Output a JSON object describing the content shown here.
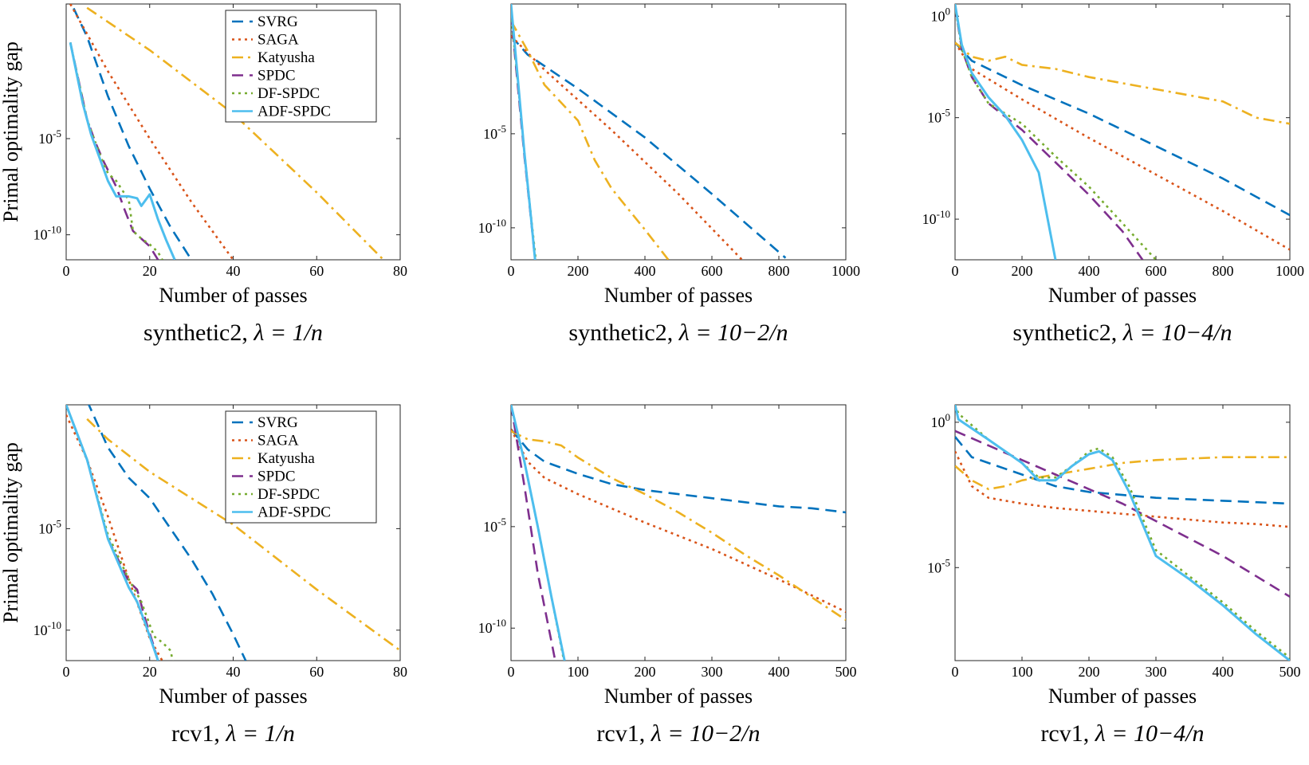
{
  "figure": {
    "ylabel": "Primal optimality gap",
    "legend": [
      "SVRG",
      "SAGA",
      "Katyusha",
      "SPDC",
      "DF-SPDC",
      "ADF-SPDC"
    ]
  },
  "series_styles": [
    {
      "name": "SVRG",
      "color": "#0072BD",
      "dash": "dashed"
    },
    {
      "name": "SAGA",
      "color": "#D95319",
      "dash": "dotted"
    },
    {
      "name": "Katyusha",
      "color": "#EDB120",
      "dash": "dashdot"
    },
    {
      "name": "SPDC",
      "color": "#7E2F8E",
      "dash": "dashed"
    },
    {
      "name": "DF-SPDC",
      "color": "#77AC30",
      "dash": "dotted"
    },
    {
      "name": "ADF-SPDC",
      "color": "#4DBEEE",
      "dash": "solid"
    }
  ],
  "chart_data": [
    {
      "type": "line",
      "caption_text": "synthetic2, ",
      "caption_math": "λ = 1/n",
      "xlabel": "Number of passes",
      "ylabel": "Primal optimality gap",
      "xlim": [
        0,
        80
      ],
      "xticks": [
        0,
        20,
        40,
        60,
        80
      ],
      "xtick_labels": [
        "0",
        "20",
        "40",
        "60",
        "80"
      ],
      "ylim_log10": [
        -11.3,
        2.0
      ],
      "yticks_log10": [
        -10,
        -5
      ],
      "ytick_labels": [
        "10-10",
        "10-5"
      ],
      "show_legend": true,
      "series": [
        {
          "name": "SVRG",
          "x": [
            0,
            5,
            10,
            15,
            20,
            25,
            30
          ],
          "log10_y": [
            2.6,
            0.3,
            -2.8,
            -5.4,
            -7.6,
            -9.6,
            -11.3
          ]
        },
        {
          "name": "SAGA",
          "x": [
            1,
            10,
            20,
            30,
            40
          ],
          "log10_y": [
            2.0,
            -1.5,
            -5.0,
            -8.3,
            -11.3
          ]
        },
        {
          "name": "Katyusha",
          "x": [
            5,
            20,
            40,
            60,
            76
          ],
          "log10_y": [
            1.8,
            -0.4,
            -3.7,
            -7.8,
            -11.3
          ]
        },
        {
          "name": "SPDC",
          "x": [
            1,
            5,
            7,
            9,
            12,
            14,
            16,
            18,
            20,
            22
          ],
          "log10_y": [
            0.0,
            -4.0,
            -5.2,
            -6.2,
            -7.5,
            -8.7,
            -9.8,
            -10.2,
            -10.6,
            -11.3
          ]
        },
        {
          "name": "DF-SPDC",
          "x": [
            1,
            5,
            8,
            10,
            12,
            15,
            16,
            18,
            20,
            22,
            23
          ],
          "log10_y": [
            0.0,
            -4.0,
            -5.8,
            -6.8,
            -7.2,
            -8.2,
            -9.8,
            -10.2,
            -10.5,
            -10.9,
            -11.3
          ]
        },
        {
          "name": "ADF-SPDC",
          "x": [
            1,
            4,
            6,
            8,
            10,
            12,
            15,
            17,
            18,
            19,
            20,
            22,
            24,
            26
          ],
          "log10_y": [
            0.0,
            -3.2,
            -4.8,
            -6.0,
            -7.2,
            -8.0,
            -8.0,
            -8.1,
            -8.5,
            -8.2,
            -7.9,
            -9.2,
            -10.3,
            -11.3
          ]
        }
      ]
    },
    {
      "type": "line",
      "caption_text": "synthetic2, ",
      "caption_math": "λ = 10−2/n",
      "xlabel": "Number of passes",
      "ylabel": "",
      "xlim": [
        0,
        1000
      ],
      "xticks": [
        0,
        200,
        400,
        600,
        800,
        1000
      ],
      "xtick_labels": [
        "0",
        "200",
        "400",
        "600",
        "800",
        "1000"
      ],
      "ylim_log10": [
        -11.7,
        1.9
      ],
      "yticks_log10": [
        -10,
        -5
      ],
      "ytick_labels": [
        "10-10",
        "10-5"
      ],
      "show_legend": false,
      "series": [
        {
          "name": "SVRG",
          "x": [
            0,
            50,
            200,
            400,
            600,
            820
          ],
          "log10_y": [
            0.2,
            -0.8,
            -2.6,
            -5.2,
            -8.2,
            -11.6
          ]
        },
        {
          "name": "SAGA",
          "x": [
            0,
            100,
            300,
            500,
            690
          ],
          "log10_y": [
            0.2,
            -1.6,
            -4.8,
            -8.2,
            -11.7
          ]
        },
        {
          "name": "Katyusha",
          "x": [
            0,
            50,
            100,
            200,
            250,
            300,
            350,
            400,
            470
          ],
          "log10_y": [
            1.0,
            -0.6,
            -2.4,
            -4.3,
            -6.4,
            -7.9,
            -9.0,
            -10.1,
            -11.7
          ]
        },
        {
          "name": "SPDC",
          "x": [
            0,
            20,
            40,
            60,
            72
          ],
          "log10_y": [
            1.4,
            -2.4,
            -6.2,
            -9.6,
            -11.7
          ]
        },
        {
          "name": "DF-SPDC",
          "x": [
            0,
            20,
            40,
            60,
            74
          ],
          "log10_y": [
            1.4,
            -2.2,
            -6.0,
            -9.4,
            -11.7
          ]
        },
        {
          "name": "ADF-SPDC",
          "x": [
            0,
            20,
            40,
            60,
            72
          ],
          "log10_y": [
            1.9,
            -2.0,
            -6.0,
            -9.5,
            -11.7
          ]
        }
      ]
    },
    {
      "type": "line",
      "caption_text": "synthetic2, ",
      "caption_math": "λ = 10−4/n",
      "xlabel": "Number of passes",
      "ylabel": "",
      "xlim": [
        0,
        1000
      ],
      "xticks": [
        0,
        200,
        400,
        600,
        800,
        1000
      ],
      "xtick_labels": [
        "0",
        "200",
        "400",
        "600",
        "800",
        "1000"
      ],
      "ylim_log10": [
        -12.0,
        0.6
      ],
      "yticks_log10": [
        -10,
        -5,
        0
      ],
      "ytick_labels": [
        "10-10",
        "10-5",
        "100"
      ],
      "show_legend": false,
      "series": [
        {
          "name": "SVRG",
          "x": [
            0,
            50,
            200,
            400,
            600,
            800,
            1000
          ],
          "log10_y": [
            -1.3,
            -2.2,
            -3.4,
            -4.8,
            -6.4,
            -8.0,
            -9.8
          ]
        },
        {
          "name": "SAGA",
          "x": [
            0,
            50,
            200,
            400,
            600,
            800,
            1000
          ],
          "log10_y": [
            -1.3,
            -2.6,
            -4.1,
            -6.0,
            -7.8,
            -9.6,
            -11.5
          ]
        },
        {
          "name": "Katyusha",
          "x": [
            0,
            50,
            100,
            150,
            200,
            300,
            400,
            500,
            600,
            700,
            800,
            900,
            1000
          ],
          "log10_y": [
            -1.3,
            -2.0,
            -2.2,
            -2.0,
            -2.4,
            -2.6,
            -3.0,
            -3.3,
            -3.6,
            -3.9,
            -4.2,
            -5.0,
            -5.3
          ]
        },
        {
          "name": "SPDC",
          "x": [
            0,
            20,
            50,
            100,
            200,
            300,
            400,
            500,
            560
          ],
          "log10_y": [
            0.5,
            -1.6,
            -3.0,
            -4.3,
            -5.6,
            -7.2,
            -8.8,
            -10.6,
            -12.0
          ]
        },
        {
          "name": "DF-SPDC",
          "x": [
            0,
            20,
            50,
            100,
            200,
            300,
            400,
            500,
            600
          ],
          "log10_y": [
            0.5,
            -1.6,
            -3.0,
            -4.3,
            -5.3,
            -6.9,
            -8.4,
            -10.2,
            -12.0
          ]
        },
        {
          "name": "ADF-SPDC",
          "x": [
            0,
            20,
            50,
            100,
            150,
            200,
            250,
            300
          ],
          "log10_y": [
            0.6,
            -1.4,
            -2.8,
            -4.0,
            -4.9,
            -6.1,
            -7.7,
            -12.0
          ]
        }
      ]
    },
    {
      "type": "line",
      "caption_text": "rcv1, ",
      "caption_math": "λ = 1/n",
      "xlabel": "Number of passes",
      "ylabel": "Primal optimality gap",
      "xlim": [
        0,
        80
      ],
      "xticks": [
        0,
        20,
        40,
        60,
        80
      ],
      "xtick_labels": [
        "0",
        "20",
        "40",
        "60",
        "80"
      ],
      "ylim_log10": [
        -11.5,
        1.1
      ],
      "yticks_log10": [
        -10,
        -5
      ],
      "ytick_labels": [
        "10-10",
        "10-5"
      ],
      "show_legend": true,
      "series": [
        {
          "name": "SVRG",
          "x": [
            5,
            10,
            15,
            20,
            25,
            30,
            35,
            40,
            43
          ],
          "log10_y": [
            1.3,
            -1.0,
            -2.5,
            -3.5,
            -5.0,
            -6.5,
            -8.2,
            -10.2,
            -11.5
          ]
        },
        {
          "name": "SAGA",
          "x": [
            0,
            5,
            10,
            15,
            20,
            23
          ],
          "log10_y": [
            0.6,
            -1.6,
            -4.4,
            -7.5,
            -10.4,
            -11.5
          ]
        },
        {
          "name": "Katyusha",
          "x": [
            5,
            10,
            20,
            40,
            60,
            80
          ],
          "log10_y": [
            0.4,
            -0.6,
            -2.2,
            -4.8,
            -8.0,
            -11.0
          ]
        },
        {
          "name": "SPDC",
          "x": [
            0,
            5,
            10,
            15,
            17,
            19,
            21,
            22
          ],
          "log10_y": [
            1.1,
            -1.6,
            -5.5,
            -7.6,
            -8.0,
            -9.5,
            -10.8,
            -11.5
          ]
        },
        {
          "name": "DF-SPDC",
          "x": [
            0,
            5,
            10,
            15,
            18,
            21,
            23,
            25,
            25.5
          ],
          "log10_y": [
            1.1,
            -1.6,
            -5.3,
            -7.5,
            -8.6,
            -10.3,
            -10.6,
            -11.0,
            -11.5
          ]
        },
        {
          "name": "ADF-SPDC",
          "x": [
            0,
            5,
            10,
            15,
            17,
            19,
            21,
            22
          ],
          "log10_y": [
            1.1,
            -1.6,
            -5.5,
            -7.9,
            -8.6,
            -9.7,
            -10.9,
            -11.5
          ]
        }
      ]
    },
    {
      "type": "line",
      "caption_text": "rcv1, ",
      "caption_math": "λ = 10−2/n",
      "xlabel": "Number of passes",
      "ylabel": "",
      "xlim": [
        0,
        500
      ],
      "xticks": [
        0,
        100,
        200,
        300,
        400,
        500
      ],
      "xtick_labels": [
        "0",
        "100",
        "200",
        "300",
        "400",
        "500"
      ],
      "ylim_log10": [
        -11.6,
        1.0
      ],
      "yticks_log10": [
        -10,
        -5
      ],
      "ytick_labels": [
        "10-10",
        "10-5"
      ],
      "show_legend": false,
      "series": [
        {
          "name": "SVRG",
          "x": [
            0,
            25,
            50,
            100,
            150,
            200,
            250,
            300,
            350,
            400,
            450,
            500
          ],
          "log10_y": [
            -0.2,
            -1.2,
            -1.8,
            -2.4,
            -2.9,
            -3.2,
            -3.4,
            -3.6,
            -3.8,
            -4.0,
            -4.1,
            -4.3
          ]
        },
        {
          "name": "SAGA",
          "x": [
            0,
            25,
            50,
            100,
            200,
            300,
            400,
            500
          ],
          "log10_y": [
            -0.2,
            -1.8,
            -2.6,
            -3.4,
            -4.8,
            -6.1,
            -7.6,
            -9.2
          ]
        },
        {
          "name": "Katyusha",
          "x": [
            0,
            25,
            50,
            75,
            100,
            150,
            200,
            250,
            300,
            350,
            400,
            450,
            500
          ],
          "log10_y": [
            -0.3,
            -0.7,
            -0.8,
            -1.0,
            -1.6,
            -2.6,
            -3.4,
            -4.3,
            -5.3,
            -6.4,
            -7.4,
            -8.5,
            -9.6
          ]
        },
        {
          "name": "SPDC",
          "x": [
            0,
            20,
            40,
            60,
            66
          ],
          "log10_y": [
            1.0,
            -3.0,
            -7.3,
            -10.6,
            -11.6
          ]
        },
        {
          "name": "DF-SPDC",
          "x": [
            0,
            20,
            40,
            60,
            79
          ],
          "log10_y": [
            1.0,
            -1.8,
            -5.0,
            -8.4,
            -11.6
          ]
        },
        {
          "name": "ADF-SPDC",
          "x": [
            0,
            20,
            40,
            60,
            80
          ],
          "log10_y": [
            1.0,
            -1.8,
            -5.0,
            -8.4,
            -11.6
          ]
        }
      ]
    },
    {
      "type": "line",
      "caption_text": "rcv1, ",
      "caption_math": "λ = 10−4/n",
      "xlabel": "Number of passes",
      "ylabel": "",
      "xlim": [
        0,
        500
      ],
      "xticks": [
        0,
        100,
        200,
        300,
        400,
        500
      ],
      "xtick_labels": [
        "0",
        "100",
        "200",
        "300",
        "400",
        "500"
      ],
      "ylim_log10": [
        -8.2,
        0.6
      ],
      "yticks_log10": [
        -5,
        0
      ],
      "ytick_labels": [
        "10-5",
        "100"
      ],
      "show_legend": false,
      "series": [
        {
          "name": "SVRG",
          "x": [
            0,
            25,
            50,
            100,
            150,
            200,
            250,
            300,
            350,
            400,
            450,
            500
          ],
          "log10_y": [
            -0.5,
            -1.2,
            -1.4,
            -1.8,
            -2.2,
            -2.4,
            -2.5,
            -2.6,
            -2.65,
            -2.7,
            -2.75,
            -2.8
          ]
        },
        {
          "name": "SAGA",
          "x": [
            0,
            25,
            50,
            100,
            150,
            200,
            250,
            300,
            350,
            400,
            450,
            500
          ],
          "log10_y": [
            -1.0,
            -2.2,
            -2.6,
            -2.8,
            -2.95,
            -3.05,
            -3.15,
            -3.25,
            -3.35,
            -3.45,
            -3.5,
            -3.6
          ]
        },
        {
          "name": "Katyusha",
          "x": [
            0,
            25,
            50,
            75,
            100,
            150,
            200,
            250,
            300,
            350,
            400,
            450,
            500
          ],
          "log10_y": [
            -1.5,
            -2.0,
            -2.3,
            -2.2,
            -2.0,
            -1.8,
            -1.6,
            -1.4,
            -1.3,
            -1.25,
            -1.2,
            -1.2,
            -1.2
          ]
        },
        {
          "name": "SPDC",
          "x": [
            0,
            50,
            100,
            150,
            200,
            250,
            300,
            350,
            400,
            450,
            500
          ],
          "log10_y": [
            -0.3,
            -0.8,
            -1.3,
            -1.8,
            -2.3,
            -2.8,
            -3.4,
            -4.0,
            -4.6,
            -5.3,
            -6.0
          ]
        },
        {
          "name": "DF-SPDC",
          "x": [
            0,
            5,
            50,
            100,
            125,
            150,
            175,
            200,
            215,
            235,
            260,
            300,
            350,
            400,
            450,
            500
          ],
          "log10_y": [
            0.6,
            0.3,
            -0.6,
            -1.4,
            -1.9,
            -1.9,
            -1.5,
            -1.0,
            -0.9,
            -1.2,
            -2.2,
            -4.4,
            -5.3,
            -6.2,
            -7.2,
            -8.1
          ]
        },
        {
          "name": "ADF-SPDC",
          "x": [
            0,
            5,
            50,
            100,
            125,
            150,
            175,
            200,
            215,
            235,
            260,
            300,
            350,
            400,
            450,
            500
          ],
          "log10_y": [
            0.6,
            0.1,
            -0.6,
            -1.4,
            -2.0,
            -2.0,
            -1.5,
            -1.1,
            -1.0,
            -1.3,
            -2.4,
            -4.6,
            -5.4,
            -6.3,
            -7.3,
            -8.2
          ]
        }
      ]
    }
  ]
}
